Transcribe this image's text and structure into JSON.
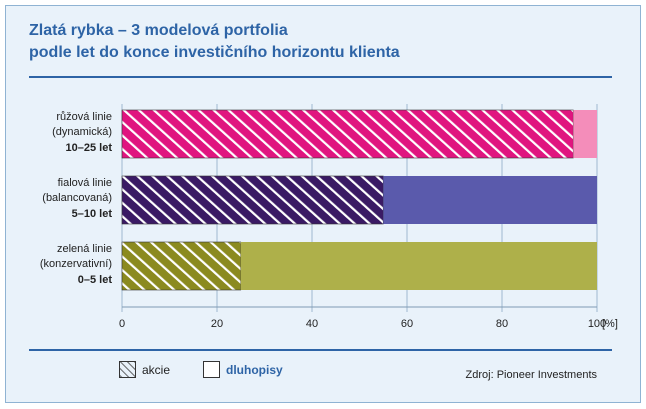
{
  "title": {
    "line1": "Zlatá rybka – 3 modelová portfolia",
    "line2": "podle let do konce investičního horizontu klienta"
  },
  "colors": {
    "background": "#e9f2fa",
    "accent": "#2e64a6"
  },
  "chart_data": {
    "type": "bar",
    "orientation": "horizontal",
    "stacked": true,
    "categories": [
      {
        "line1": "růžová linie",
        "line2": "(dynamická)",
        "line3": "10–25 let"
      },
      {
        "line1": "fialová linie",
        "line2": "(balancovaná)",
        "line3": "5–10 let"
      },
      {
        "line1": "zelená linie",
        "line2": "(konzervativní)",
        "line3": "0–5 let"
      }
    ],
    "series": [
      {
        "name": "akcie",
        "pattern": "hatched",
        "values": [
          95,
          55,
          25
        ],
        "colors": [
          "#e0157f",
          "#3a1a64",
          "#8b8a1f"
        ]
      },
      {
        "name": "dluhopisy",
        "pattern": "solid",
        "values": [
          5,
          45,
          75
        ],
        "colors": [
          "#f48dba",
          "#5a5aac",
          "#aeb04a"
        ]
      }
    ],
    "xlim": [
      0,
      100
    ],
    "x_ticks": [
      "0",
      "20",
      "40",
      "60",
      "80",
      "100"
    ],
    "x_unit": "[%]",
    "legend_position": "bottom-left"
  },
  "legend": {
    "items": [
      {
        "label": "akcie",
        "style": "hatched"
      },
      {
        "label": "dluhopisy",
        "style": "solid-white"
      }
    ]
  },
  "source": "Zdroj: Pioneer Investments"
}
